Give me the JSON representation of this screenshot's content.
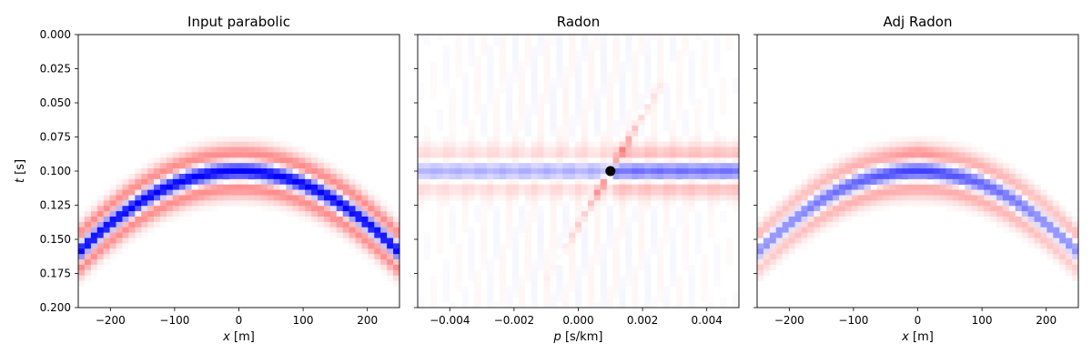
{
  "chart_data": [
    {
      "type": "heatmap",
      "title": "Input parabolic",
      "xlabel_var": "x",
      "xlabel_unit": " [m]",
      "ylabel_var": "t",
      "ylabel_unit": " [s]",
      "xlim": [
        -250,
        250
      ],
      "ylim": [
        0.2,
        0.0
      ],
      "xticks": [
        -200,
        -100,
        0,
        100,
        200
      ],
      "xtick_labels": [
        "−200",
        "−100",
        "0",
        "100",
        "200"
      ],
      "yticks": [
        0.0,
        0.025,
        0.05,
        0.075,
        0.1,
        0.125,
        0.15,
        0.175,
        0.2
      ],
      "ytick_labels": [
        "0.000",
        "0.025",
        "0.050",
        "0.075",
        "0.100",
        "0.125",
        "0.150",
        "0.175",
        "0.200"
      ],
      "colormap": "bwr_r",
      "event": {
        "kind": "parabola",
        "t0": 0.1,
        "curvature": 9.6e-07
      }
    },
    {
      "type": "heatmap",
      "title": "Radon",
      "xlabel_var": "p",
      "xlabel_unit": " [s/km]",
      "xlim": [
        -0.005,
        0.005
      ],
      "ylim": [
        0.2,
        0.0
      ],
      "xticks": [
        -0.004,
        -0.002,
        0.0,
        0.002,
        0.004
      ],
      "xtick_labels": [
        "−0.004",
        "−0.002",
        "0.000",
        "0.002",
        "0.004"
      ],
      "yticks": [
        0.0,
        0.025,
        0.05,
        0.075,
        0.1,
        0.125,
        0.15,
        0.175,
        0.2
      ],
      "ytick_labels": [],
      "colormap": "bwr_r",
      "marker": {
        "p": 0.001,
        "t": 0.1,
        "color": "#000000"
      }
    },
    {
      "type": "heatmap",
      "title": "Adj Radon",
      "xlabel_var": "x",
      "xlabel_unit": " [m]",
      "xlim": [
        -250,
        250
      ],
      "ylim": [
        0.2,
        0.0
      ],
      "xticks": [
        -200,
        -100,
        0,
        100,
        200
      ],
      "xtick_labels": [
        "−200",
        "−100",
        "0",
        "100",
        "200"
      ],
      "yticks": [
        0.0,
        0.025,
        0.05,
        0.075,
        0.1,
        0.125,
        0.15,
        0.175,
        0.2
      ],
      "ytick_labels": [],
      "colormap": "bwr_r",
      "event": {
        "kind": "parabola",
        "t0": 0.1,
        "curvature": 9.6e-07
      }
    }
  ]
}
